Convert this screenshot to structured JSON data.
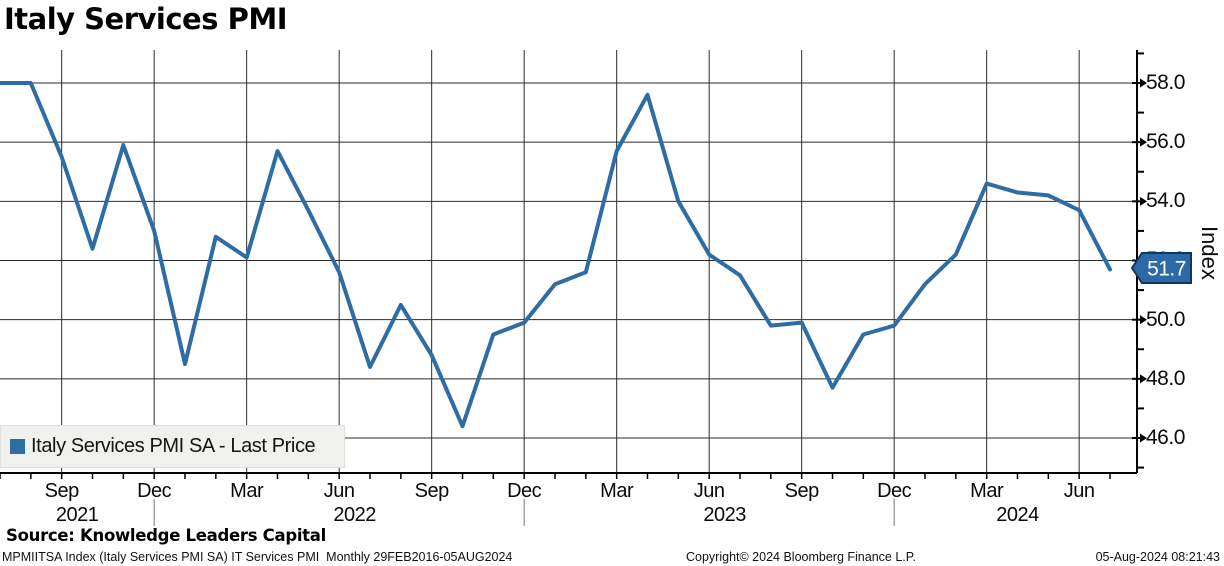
{
  "title": "Italy Services PMI",
  "legend": {
    "label": "Italy Services PMI SA - Last Price",
    "swatch_color": "#2e6ca4"
  },
  "last_price_badge": {
    "value": "51.7",
    "fill": "#2b6aa6",
    "border": "#14365c",
    "text_color": "#ffffff"
  },
  "y_axis_title": "Index",
  "source_line": "Source: Knowledge Leaders Capital",
  "footer": {
    "left": "MPMIITSA Index (Italy Services PMI SA) IT Services PMI  Monthly 29FEB2016-05AUG2024",
    "center": "Copyright© 2024 Bloomberg Finance L.P.",
    "right": "05-Aug-2024 08:21:43"
  },
  "chart_data": {
    "type": "line",
    "title": "Italy Services PMI",
    "xlabel": "",
    "ylabel": "Index",
    "grid": true,
    "legend_position": "bottom-left",
    "ylim": [
      44.9,
      59.1
    ],
    "yticks_major": [
      46,
      48,
      50,
      52,
      54,
      56,
      58
    ],
    "yticks_minor": [
      45,
      47,
      49,
      51,
      53,
      55,
      57,
      59
    ],
    "x_tick_month_names": {
      "3": "Mar",
      "6": "Jun",
      "9": "Sep",
      "12": "Dec"
    },
    "last_value": 51.7,
    "series": [
      {
        "name": "Italy Services PMI SA - Last Price",
        "color": "#2e6ca4",
        "x": [
          "2021-07",
          "2021-08",
          "2021-09",
          "2021-10",
          "2021-11",
          "2021-12",
          "2022-01",
          "2022-02",
          "2022-03",
          "2022-04",
          "2022-05",
          "2022-06",
          "2022-07",
          "2022-08",
          "2022-09",
          "2022-10",
          "2022-11",
          "2022-12",
          "2023-01",
          "2023-02",
          "2023-03",
          "2023-04",
          "2023-05",
          "2023-06",
          "2023-07",
          "2023-08",
          "2023-09",
          "2023-10",
          "2023-11",
          "2023-12",
          "2024-01",
          "2024-02",
          "2024-03",
          "2024-04",
          "2024-05",
          "2024-06",
          "2024-07"
        ],
        "values": [
          58.0,
          58.0,
          55.5,
          52.4,
          55.9,
          53.0,
          48.5,
          52.8,
          52.1,
          55.7,
          53.7,
          51.6,
          48.4,
          50.5,
          48.8,
          46.4,
          49.5,
          49.9,
          51.2,
          51.6,
          55.7,
          57.6,
          54.0,
          52.2,
          51.5,
          49.8,
          49.9,
          47.7,
          49.5,
          49.8,
          51.2,
          52.2,
          54.6,
          54.3,
          54.2,
          53.7,
          51.7
        ]
      }
    ]
  }
}
